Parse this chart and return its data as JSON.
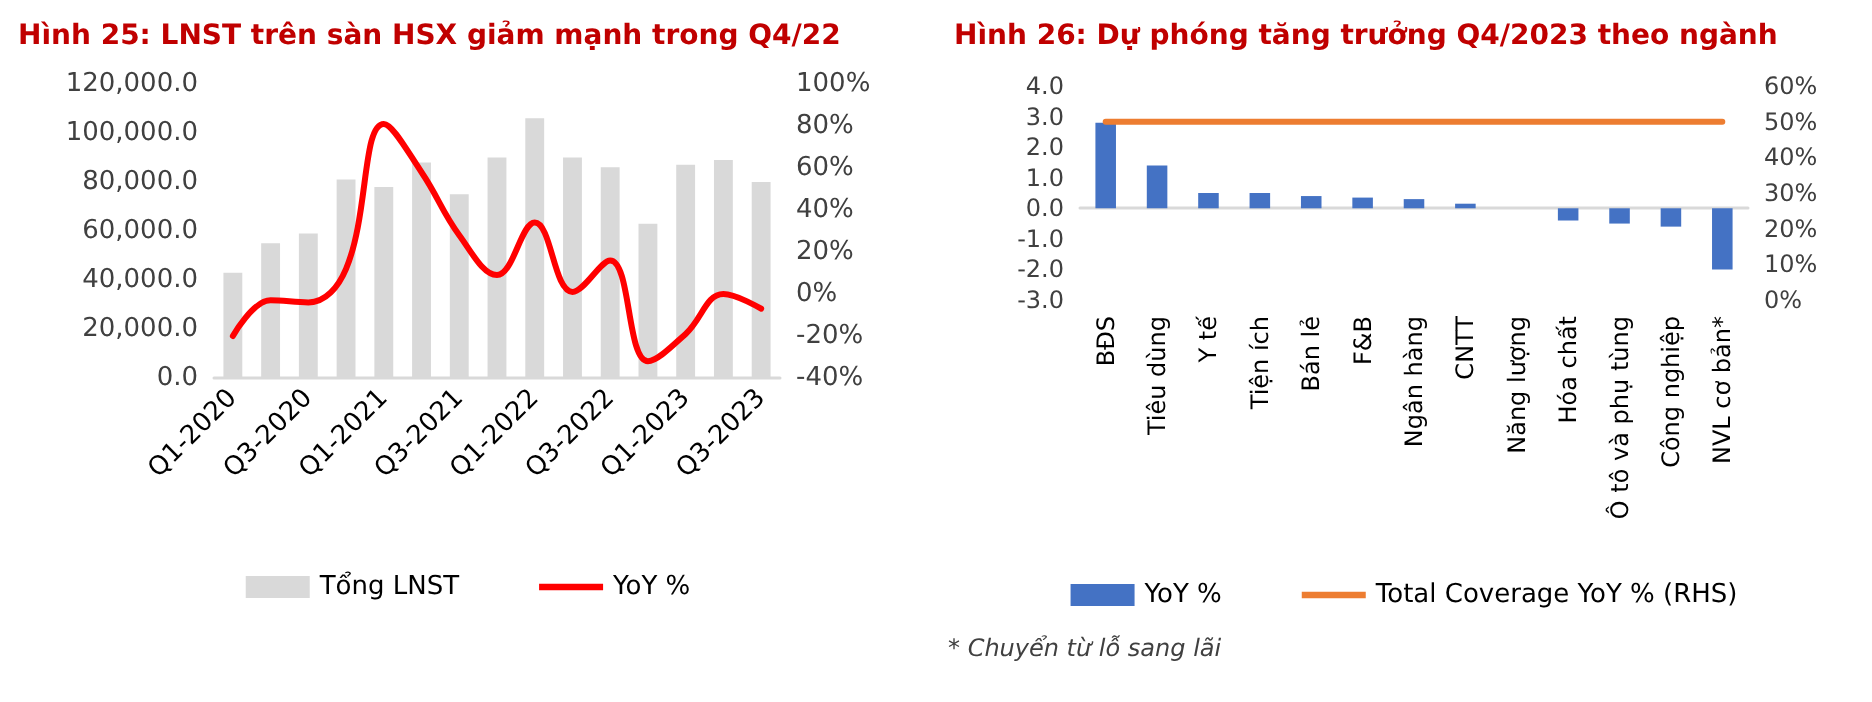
{
  "chart_data": [
    {
      "type": "bar",
      "title": "Hình 25: LNST trên sàn HSX giảm mạnh trong Q4/22",
      "categories": [
        "Q1-2020",
        null,
        "Q3-2020",
        null,
        "Q1-2021",
        null,
        "Q3-2021",
        null,
        "Q1-2022",
        null,
        "Q3-2022",
        null,
        "Q1-2023",
        null,
        "Q3-2023"
      ],
      "series": [
        {
          "name": "Tổng LNST",
          "color": "#d9d9d9",
          "values": [
            43000,
            55000,
            59000,
            81000,
            78000,
            88000,
            75000,
            90000,
            106000,
            90000,
            86000,
            63000,
            87000,
            89000,
            80000
          ]
        },
        {
          "name": "YoY %",
          "type": "line",
          "axis": "y2",
          "color": "#ff0000",
          "values": [
            -20,
            -3,
            -4,
            12,
            81,
            58,
            28,
            9,
            34,
            1,
            16,
            -32,
            -19,
            0,
            -7
          ]
        }
      ],
      "ylim": [
        0,
        120000
      ],
      "yticks": [
        {
          "value": 0,
          "label": "0.0"
        },
        {
          "value": 20000,
          "label": "20,000.0"
        },
        {
          "value": 40000,
          "label": "40,000.0"
        },
        {
          "value": 60000,
          "label": "60,000.0"
        },
        {
          "value": 80000,
          "label": "80,000.0"
        },
        {
          "value": 100000,
          "label": "100,000.0"
        },
        {
          "value": 120000,
          "label": "120,000.0"
        }
      ],
      "y2lim": [
        -40,
        100
      ],
      "y2ticks": [
        {
          "value": -40,
          "label": "-40%"
        },
        {
          "value": -20,
          "label": "-20%"
        },
        {
          "value": 0,
          "label": "0%"
        },
        {
          "value": 20,
          "label": "20%"
        },
        {
          "value": 40,
          "label": "40%"
        },
        {
          "value": 60,
          "label": "60%"
        },
        {
          "value": 80,
          "label": "80%"
        },
        {
          "value": 100,
          "label": "100%"
        }
      ],
      "legend": "bottom",
      "marker": "none"
    },
    {
      "type": "bar",
      "title": "Hình 26: Dự phóng tăng trưởng Q4/2023 theo ngành",
      "categories": [
        "BĐS",
        "Tiêu dùng",
        "Y tế",
        "Tiện ích",
        "Bán lẻ",
        "F&B",
        "Ngân hàng",
        "CNTT",
        "Năng lượng",
        "Hóa chất",
        "Ô tô và phụ tùng",
        "Công nghiệp",
        "NVL cơ bản*"
      ],
      "series": [
        {
          "name": "YoY %",
          "color": "#4472c4",
          "values": [
            2.8,
            1.4,
            0.5,
            0.5,
            0.4,
            0.35,
            0.3,
            0.15,
            0,
            -0.4,
            -0.5,
            -0.6,
            -2.0
          ]
        },
        {
          "name": "Total Coverage YoY % (RHS)",
          "type": "line",
          "axis": "y2",
          "color": "#ed7d31",
          "values": [
            50,
            50,
            50,
            50,
            50,
            50,
            50,
            50,
            50,
            50,
            50,
            50,
            50
          ]
        }
      ],
      "ylim": [
        -3,
        4
      ],
      "yticks": [
        {
          "value": -3,
          "label": "-3.0"
        },
        {
          "value": -2,
          "label": "-2.0"
        },
        {
          "value": -1,
          "label": "-1.0"
        },
        {
          "value": 0,
          "label": "0.0"
        },
        {
          "value": 1,
          "label": "1.0"
        },
        {
          "value": 2,
          "label": "2.0"
        },
        {
          "value": 3,
          "label": "3.0"
        },
        {
          "value": 4,
          "label": "4.0"
        }
      ],
      "y2lim": [
        0,
        60
      ],
      "y2ticks": [
        {
          "value": 0,
          "label": "0%"
        },
        {
          "value": 10,
          "label": "10%"
        },
        {
          "value": 20,
          "label": "20%"
        },
        {
          "value": 30,
          "label": "30%"
        },
        {
          "value": 40,
          "label": "40%"
        },
        {
          "value": 50,
          "label": "50%"
        },
        {
          "value": 60,
          "label": "60%"
        }
      ],
      "legend": "bottom",
      "marker": "none",
      "annotations": [
        "* Chuyển từ lỗ sang lãi"
      ]
    }
  ]
}
